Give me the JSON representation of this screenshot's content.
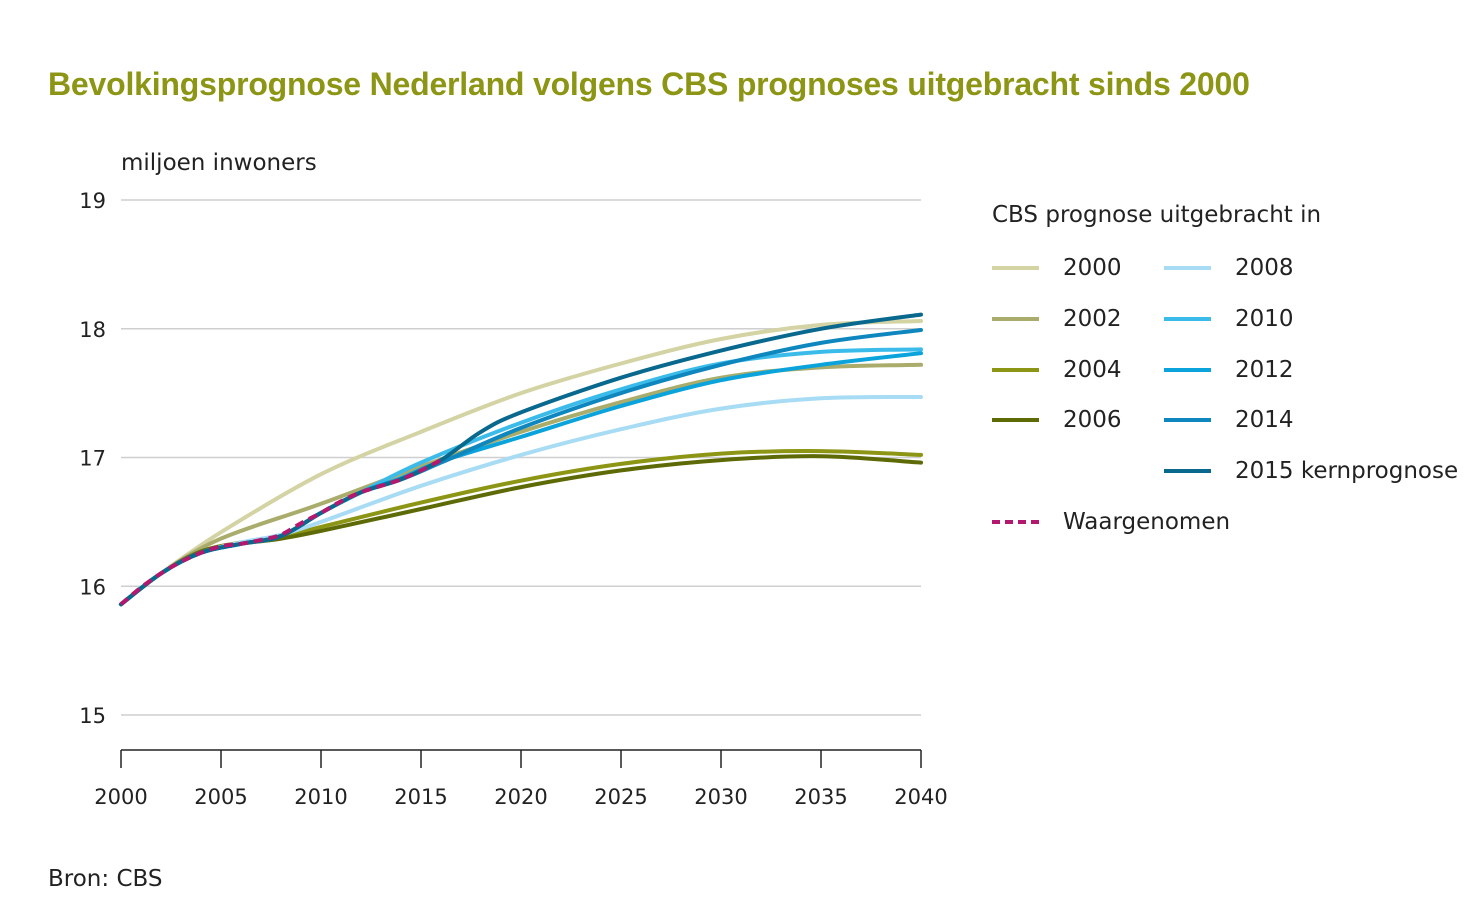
{
  "title": "Bevolkingsprognose Nederland volgens CBS prognoses uitgebracht sinds 2000",
  "y_unit_label": "miljoen inwoners",
  "source": "Bron: CBS",
  "legend_title": "CBS prognose uitgebracht in",
  "colors": {
    "title": "#8c9514",
    "grid": "#cfcfcf",
    "axis": "#222222"
  },
  "chart_data": {
    "type": "line",
    "title": "Bevolkingsprognose Nederland volgens CBS prognoses uitgebracht sinds 2000",
    "xlabel": "",
    "ylabel": "miljoen inwoners",
    "xlim": [
      2000,
      2040
    ],
    "ylim": [
      15,
      19
    ],
    "x_ticks": [
      2000,
      2005,
      2010,
      2015,
      2020,
      2025,
      2030,
      2035,
      2040
    ],
    "y_ticks": [
      15,
      16,
      17,
      18,
      19
    ],
    "grid": true,
    "legend_position": "right",
    "series": [
      {
        "name": "2000",
        "color": "#d3d3a4",
        "dashed": false,
        "points": [
          [
            2000,
            15.86
          ],
          [
            2002,
            16.1
          ],
          [
            2005,
            16.42
          ],
          [
            2010,
            16.87
          ],
          [
            2015,
            17.2
          ],
          [
            2020,
            17.5
          ],
          [
            2025,
            17.73
          ],
          [
            2030,
            17.92
          ],
          [
            2035,
            18.03
          ],
          [
            2040,
            18.06
          ]
        ]
      },
      {
        "name": "2002",
        "color": "#a9ac6a",
        "dashed": false,
        "points": [
          [
            2000,
            15.86
          ],
          [
            2002,
            16.1
          ],
          [
            2005,
            16.37
          ],
          [
            2010,
            16.64
          ],
          [
            2015,
            16.93
          ],
          [
            2020,
            17.2
          ],
          [
            2025,
            17.43
          ],
          [
            2030,
            17.62
          ],
          [
            2035,
            17.7
          ],
          [
            2040,
            17.72
          ]
        ]
      },
      {
        "name": "2004",
        "color": "#8c9514",
        "dashed": false,
        "points": [
          [
            2000,
            15.86
          ],
          [
            2002,
            16.1
          ],
          [
            2004,
            16.27
          ],
          [
            2006,
            16.34
          ],
          [
            2008,
            16.38
          ],
          [
            2010,
            16.46
          ],
          [
            2015,
            16.65
          ],
          [
            2020,
            16.82
          ],
          [
            2025,
            16.95
          ],
          [
            2030,
            17.03
          ],
          [
            2035,
            17.05
          ],
          [
            2040,
            17.02
          ]
        ]
      },
      {
        "name": "2006",
        "color": "#5e6a06",
        "dashed": false,
        "points": [
          [
            2000,
            15.86
          ],
          [
            2002,
            16.1
          ],
          [
            2004,
            16.27
          ],
          [
            2006,
            16.33
          ],
          [
            2008,
            16.37
          ],
          [
            2010,
            16.43
          ],
          [
            2015,
            16.6
          ],
          [
            2020,
            16.77
          ],
          [
            2025,
            16.9
          ],
          [
            2030,
            16.98
          ],
          [
            2035,
            17.01
          ],
          [
            2040,
            16.96
          ]
        ]
      },
      {
        "name": "2008",
        "color": "#a7dcf4",
        "dashed": false,
        "points": [
          [
            2000,
            15.86
          ],
          [
            2002,
            16.1
          ],
          [
            2004,
            16.26
          ],
          [
            2006,
            16.34
          ],
          [
            2008,
            16.4
          ],
          [
            2010,
            16.5
          ],
          [
            2015,
            16.78
          ],
          [
            2020,
            17.02
          ],
          [
            2025,
            17.22
          ],
          [
            2030,
            17.38
          ],
          [
            2035,
            17.46
          ],
          [
            2040,
            17.47
          ]
        ]
      },
      {
        "name": "2010",
        "color": "#3bbbe9",
        "dashed": false,
        "points": [
          [
            2000,
            15.86
          ],
          [
            2002,
            16.1
          ],
          [
            2004,
            16.26
          ],
          [
            2006,
            16.33
          ],
          [
            2008,
            16.39
          ],
          [
            2010,
            16.57
          ],
          [
            2012,
            16.73
          ],
          [
            2015,
            16.96
          ],
          [
            2020,
            17.27
          ],
          [
            2025,
            17.53
          ],
          [
            2030,
            17.73
          ],
          [
            2035,
            17.82
          ],
          [
            2040,
            17.84
          ]
        ]
      },
      {
        "name": "2012",
        "color": "#0aa3dc",
        "dashed": false,
        "points": [
          [
            2000,
            15.86
          ],
          [
            2002,
            16.1
          ],
          [
            2004,
            16.26
          ],
          [
            2006,
            16.33
          ],
          [
            2008,
            16.39
          ],
          [
            2010,
            16.57
          ],
          [
            2012,
            16.73
          ],
          [
            2014,
            16.84
          ],
          [
            2016,
            16.97
          ],
          [
            2020,
            17.16
          ],
          [
            2025,
            17.4
          ],
          [
            2030,
            17.6
          ],
          [
            2035,
            17.72
          ],
          [
            2040,
            17.81
          ]
        ]
      },
      {
        "name": "2014",
        "color": "#0e86be",
        "dashed": false,
        "points": [
          [
            2000,
            15.86
          ],
          [
            2002,
            16.1
          ],
          [
            2004,
            16.26
          ],
          [
            2006,
            16.33
          ],
          [
            2008,
            16.39
          ],
          [
            2010,
            16.57
          ],
          [
            2012,
            16.73
          ],
          [
            2014,
            16.83
          ],
          [
            2016,
            16.96
          ],
          [
            2020,
            17.23
          ],
          [
            2025,
            17.5
          ],
          [
            2030,
            17.72
          ],
          [
            2035,
            17.89
          ],
          [
            2040,
            17.99
          ]
        ]
      },
      {
        "name": "2015 kernprognose",
        "color": "#08688e",
        "dashed": false,
        "points": [
          [
            2000,
            15.86
          ],
          [
            2002,
            16.1
          ],
          [
            2004,
            16.26
          ],
          [
            2006,
            16.33
          ],
          [
            2008,
            16.39
          ],
          [
            2010,
            16.57
          ],
          [
            2012,
            16.73
          ],
          [
            2014,
            16.83
          ],
          [
            2016,
            16.98
          ],
          [
            2018,
            17.2
          ],
          [
            2020,
            17.35
          ],
          [
            2025,
            17.62
          ],
          [
            2030,
            17.83
          ],
          [
            2035,
            18.0
          ],
          [
            2040,
            18.11
          ]
        ]
      },
      {
        "name": "Waargenomen",
        "color": "#b4186e",
        "dashed": true,
        "points": [
          [
            2000,
            15.86
          ],
          [
            2001,
            15.99
          ],
          [
            2002,
            16.1
          ],
          [
            2003,
            16.19
          ],
          [
            2004,
            16.26
          ],
          [
            2005,
            16.31
          ],
          [
            2006,
            16.33
          ],
          [
            2007,
            16.36
          ],
          [
            2008,
            16.4
          ],
          [
            2009,
            16.49
          ],
          [
            2010,
            16.57
          ],
          [
            2011,
            16.66
          ],
          [
            2012,
            16.73
          ],
          [
            2013,
            16.78
          ],
          [
            2014,
            16.83
          ],
          [
            2015,
            16.9
          ],
          [
            2016,
            16.98
          ]
        ]
      }
    ]
  }
}
